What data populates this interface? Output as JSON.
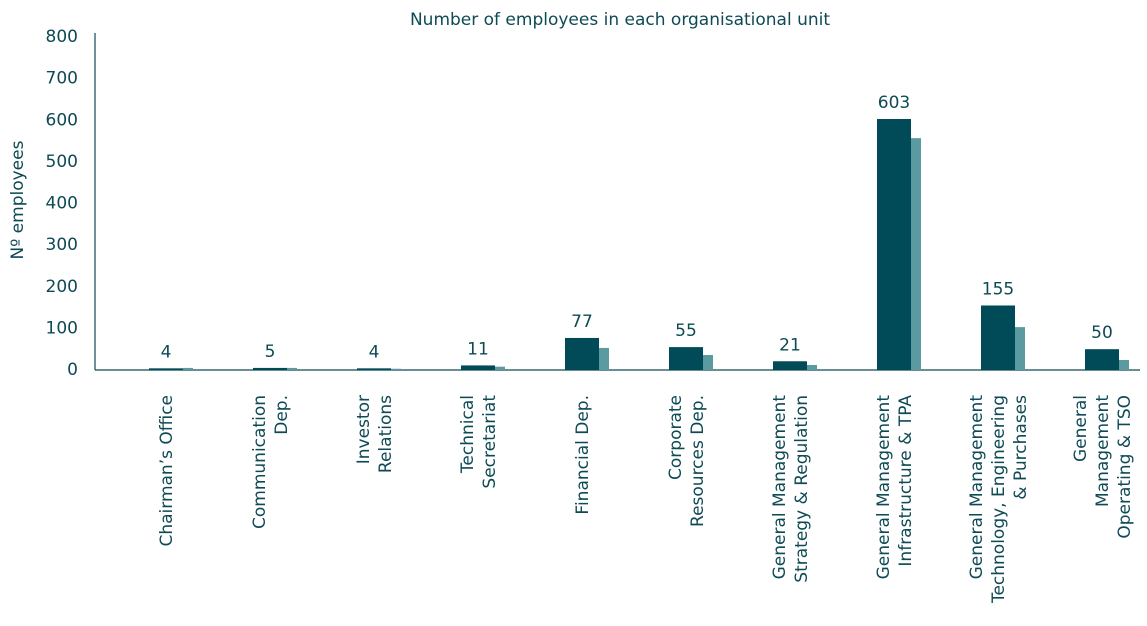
{
  "chart_data": {
    "type": "bar",
    "title": "Number of employees in each organisational unit",
    "y_label": "Nº employees",
    "categories": [
      [
        "Chairman’s Office"
      ],
      [
        "Communication",
        "Dep."
      ],
      [
        "Investor",
        "Relations"
      ],
      [
        "Technical",
        "Secretariat"
      ],
      [
        "Financial Dep."
      ],
      [
        "Corporate",
        "Resources Dep."
      ],
      [
        "General Management",
        "Strategy & Regulation"
      ],
      [
        "General Management",
        "Infrastructure & TPA"
      ],
      [
        "General Management",
        "Technology, Engineering",
        "& Purchases"
      ],
      [
        "General",
        "Management",
        "Operating & TSO"
      ]
    ],
    "series": [
      {
        "color": "#004b57",
        "values": [
          4,
          5,
          4,
          11,
          77,
          55,
          21,
          603,
          155,
          50
        ]
      },
      {
        "color": "#5a9aa0",
        "values": [
          5,
          5,
          3,
          8,
          53,
          36,
          12,
          557,
          103,
          24
        ]
      }
    ],
    "ylim": [
      0,
      800
    ],
    "yticks": [
      0,
      100,
      200,
      300,
      400,
      500,
      600,
      700,
      800
    ],
    "grid": false
  }
}
